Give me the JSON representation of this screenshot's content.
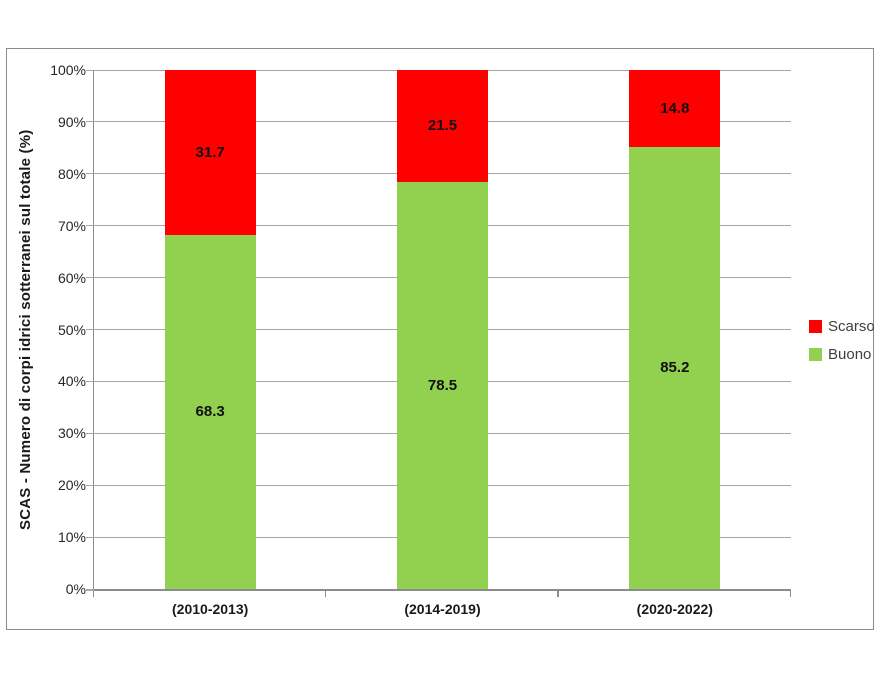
{
  "chart_data": {
    "type": "bar",
    "stacked": true,
    "orientation": "vertical",
    "title": "",
    "xlabel": "",
    "ylabel": "SCAS - Numero di corpi idrici sotterranei sul totale (%)",
    "categories": [
      "(2010-2013)",
      "(2014-2019)",
      "(2020-2022)"
    ],
    "series": [
      {
        "name": "Buono",
        "color": "#92D050",
        "values": [
          68.3,
          78.5,
          85.2
        ]
      },
      {
        "name": "Scarso",
        "color": "#FF0000",
        "values": [
          31.7,
          21.5,
          14.8
        ]
      }
    ],
    "data_labels": {
      "Buono": [
        "68.3",
        "78.5",
        "85.2"
      ],
      "Scarso": [
        "31.7",
        "21.5",
        "14.8"
      ]
    },
    "ylim": [
      0,
      100
    ],
    "y_tick_labels": [
      "0%",
      "10%",
      "20%",
      "30%",
      "40%",
      "50%",
      "60%",
      "70%",
      "80%",
      "90%",
      "100%"
    ],
    "grid": true,
    "legend_position": "right",
    "legend_order": [
      "Scarso",
      "Buono"
    ]
  },
  "style_colors": {
    "gridline": "#a6a6a6",
    "axis": "#8c8c8c",
    "frame_border": "#8c8c8c",
    "tick_text": "#262626",
    "label_text": "#111111",
    "legend_text": "#404040"
  }
}
